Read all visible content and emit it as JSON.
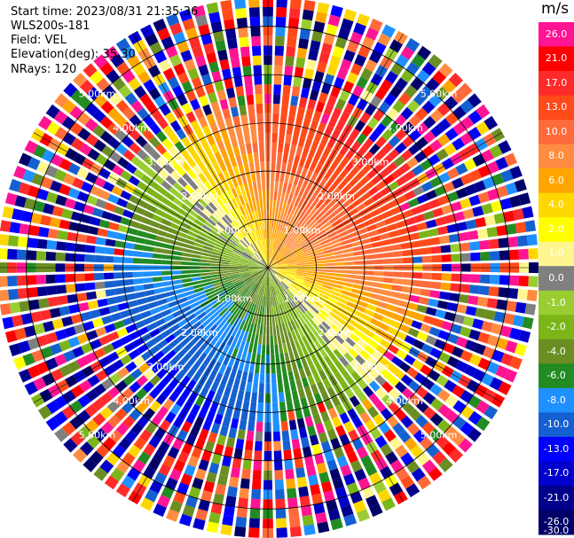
{
  "header": {
    "start_time": "Start time: 2023/08/31 21:35:36",
    "instrument": "WLS200s-181",
    "field": "Field: VEL",
    "elevation": "Elevation(deg): 35.30",
    "nrays": "NRays: 120"
  },
  "chart_data": {
    "type": "heatmap",
    "subtype": "radar-ppi",
    "field": "VEL",
    "units": "m/s",
    "elevation_deg": 35.3,
    "n_rays": 120,
    "range_rings_km": [
      1.0,
      2.0,
      3.0,
      4.0,
      5.0
    ],
    "ring_labels": [
      "1.00km",
      "2.00km",
      "3.00km",
      "4.00km",
      "5.00km"
    ],
    "max_range_km": 5.6,
    "colorbar": {
      "title": "m/s",
      "tick_labels": [
        "26.0",
        "21.0",
        "17.0",
        "13.0",
        "10.0",
        "8.0",
        "6.0",
        "4.0",
        "2.0",
        "1.0",
        "0.0",
        "-1.0",
        "-2.0",
        "-4.0",
        "-6.0",
        "-8.0",
        "-10.0",
        "-13.0",
        "-17.0",
        "-21.0",
        "-26.0",
        "-30.0"
      ],
      "colors": [
        "#ff1493",
        "#ff0000",
        "#ff2a2a",
        "#ff4a1a",
        "#ff6a3a",
        "#ff8c40",
        "#ffa500",
        "#ffd700",
        "#ffff00",
        "#fff68f",
        "#808080",
        "#9acd32",
        "#7cb518",
        "#6b8e23",
        "#228b22",
        "#1e90ff",
        "#1560d0",
        "#0000ff",
        "#0000cd",
        "#00008b",
        "#000066"
      ]
    },
    "pattern": {
      "positive_velocity_sector": "north-east",
      "negative_velocity_sector": "south-west"
    }
  }
}
